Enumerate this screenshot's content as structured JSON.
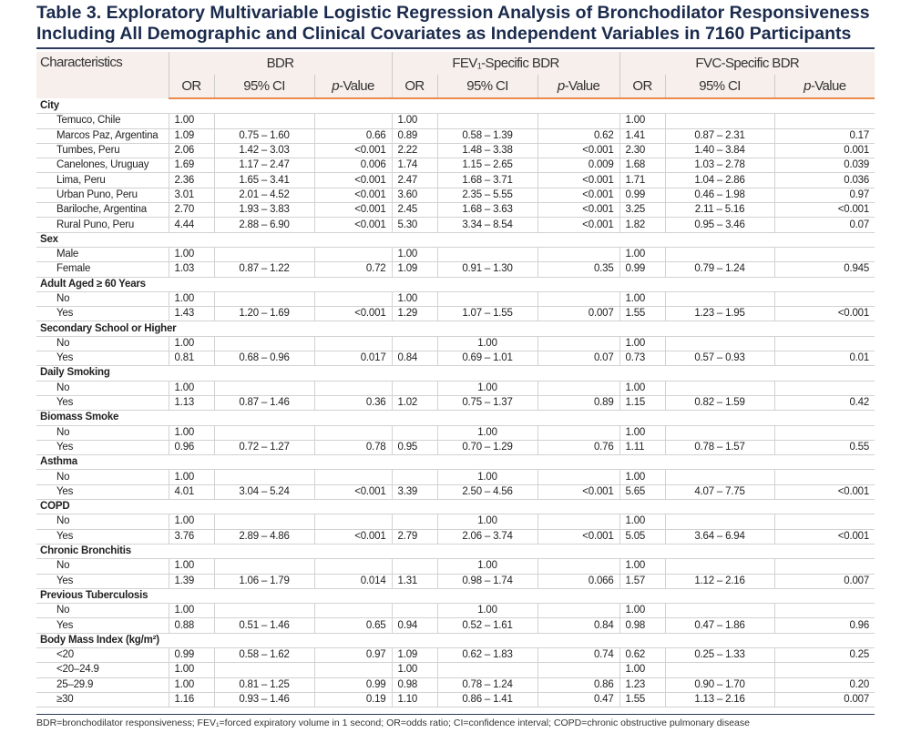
{
  "header": {
    "title": "Table 3. Exploratory Multivariable Logistic Regression Analysis of Bronchodilator Responsiveness Including All Demographic and Clinical Covariates as Independent Variables in 7160 Participants"
  },
  "table": {
    "groups": [
      "Characteristics",
      "BDR",
      "FEV₁-Specific BDR",
      "FVC-Specific BDR"
    ],
    "subheaders": [
      "OR",
      "95% CI",
      "p-Value",
      "OR",
      "95% CI",
      "p-Value",
      "OR",
      "95% CI",
      "p-Value"
    ],
    "sections": [
      {
        "title": "City",
        "rows": [
          [
            "Temuco, Chile",
            "1.00",
            null,
            null,
            "1.00",
            null,
            null,
            "1.00",
            null,
            null
          ],
          [
            "Marcos Paz, Argentina",
            "1.09",
            "0.75 – 1.60",
            "0.66",
            "0.89",
            "0.58 – 1.39",
            "0.62",
            "1.41",
            "0.87 – 2.31",
            "0.17"
          ],
          [
            "Tumbes, Peru",
            "2.06",
            "1.42 – 3.03",
            "<0.001",
            "2.22",
            "1.48 – 3.38",
            "<0.001",
            "2.30",
            "1.40 – 3.84",
            "0.001"
          ],
          [
            "Canelones, Uruguay",
            "1.69",
            "1.17 – 2.47",
            "0.006",
            "1.74",
            "1.15 – 2.65",
            "0.009",
            "1.68",
            "1.03 – 2.78",
            "0.039"
          ],
          [
            "Lima, Peru",
            "2.36",
            "1.65 – 3.41",
            "<0.001",
            "2.47",
            "1.68 – 3.71",
            "<0.001",
            "1.71",
            "1.04 – 2.86",
            "0.036"
          ],
          [
            "Urban Puno, Peru",
            "3.01",
            "2.01 – 4.52",
            "<0.001",
            "3.60",
            "2.35 – 5.55",
            "<0.001",
            "0.99",
            "0.46 – 1.98",
            "0.97"
          ],
          [
            "Bariloche, Argentina",
            "2.70",
            "1.93 – 3.83",
            "<0.001",
            "2.45",
            "1.68 – 3.63",
            "<0.001",
            "3.25",
            "2.11 – 5.16",
            "<0.001"
          ],
          [
            "Rural Puno, Peru",
            "4.44",
            "2.88 – 6.90",
            "<0.001",
            "5.30",
            "3.34 – 8.54",
            "<0.001",
            "1.82",
            "0.95 – 3.46",
            "0.07"
          ]
        ]
      },
      {
        "title": "Sex",
        "rows": [
          [
            "Male",
            "1.00",
            null,
            null,
            "1.00",
            null,
            null,
            "1.00",
            null,
            null
          ],
          [
            "Female",
            "1.03",
            "0.87 – 1.22",
            "0.72",
            "1.09",
            "0.91 – 1.30",
            "0.35",
            "0.99",
            "0.79 – 1.24",
            "0.945"
          ]
        ]
      },
      {
        "title": "Adult Aged ≥ 60 Years",
        "rows": [
          [
            "No",
            "1.00",
            null,
            null,
            "1.00",
            null,
            null,
            "1.00",
            null,
            null
          ],
          [
            "Yes",
            "1.43",
            "1.20 – 1.69",
            "<0.001",
            "1.29",
            "1.07 – 1.55",
            "0.007",
            "1.55",
            "1.23 – 1.95",
            "<0.001"
          ]
        ]
      },
      {
        "title": "Secondary School or Higher",
        "rows": [
          [
            "No",
            "1.00",
            null,
            null,
            null,
            "1.00",
            null,
            "1.00",
            null,
            null
          ],
          [
            "Yes",
            "0.81",
            "0.68 – 0.96",
            "0.017",
            "0.84",
            "0.69 – 1.01",
            "0.07",
            "0.73",
            "0.57 – 0.93",
            "0.01"
          ]
        ]
      },
      {
        "title": "Daily Smoking",
        "rows": [
          [
            "No",
            "1.00",
            null,
            null,
            null,
            "1.00",
            null,
            "1.00",
            null,
            null
          ],
          [
            "Yes",
            "1.13",
            "0.87 – 1.46",
            "0.36",
            "1.02",
            "0.75 – 1.37",
            "0.89",
            "1.15",
            "0.82 – 1.59",
            "0.42"
          ]
        ]
      },
      {
        "title": "Biomass Smoke",
        "rows": [
          [
            "No",
            "1.00",
            null,
            null,
            null,
            "1.00",
            null,
            "1.00",
            null,
            null
          ],
          [
            "Yes",
            "0.96",
            "0.72 – 1.27",
            "0.78",
            "0.95",
            "0.70 – 1.29",
            "0.76",
            "1.11",
            "0.78 – 1.57",
            "0.55"
          ]
        ]
      },
      {
        "title": "Asthma",
        "rows": [
          [
            "No",
            "1.00",
            null,
            null,
            null,
            "1.00",
            null,
            "1.00",
            null,
            null
          ],
          [
            "Yes",
            "4.01",
            "3.04 – 5.24",
            "<0.001",
            "3.39",
            "2.50 – 4.56",
            "<0.001",
            "5.65",
            "4.07 – 7.75",
            "<0.001"
          ]
        ]
      },
      {
        "title": "COPD",
        "rows": [
          [
            "No",
            "1.00",
            null,
            null,
            null,
            "1.00",
            null,
            "1.00",
            null,
            null
          ],
          [
            "Yes",
            "3.76",
            "2.89 – 4.86",
            "<0.001",
            "2.79",
            "2.06 – 3.74",
            "<0.001",
            "5.05",
            "3.64 – 6.94",
            "<0.001"
          ]
        ]
      },
      {
        "title": "Chronic Bronchitis",
        "rows": [
          [
            "No",
            "1.00",
            null,
            null,
            null,
            "1.00",
            null,
            "1.00",
            null,
            null
          ],
          [
            "Yes",
            "1.39",
            "1.06 – 1.79",
            "0.014",
            "1.31",
            "0.98 – 1.74",
            "0.066",
            "1.57",
            "1.12 – 2.16",
            "0.007"
          ]
        ]
      },
      {
        "title": "Previous Tuberculosis",
        "rows": [
          [
            "No",
            "1.00",
            null,
            null,
            null,
            "1.00",
            null,
            "1.00",
            null,
            null
          ],
          [
            "Yes",
            "0.88",
            "0.51 – 1.46",
            "0.65",
            "0.94",
            "0.52 – 1.61",
            "0.84",
            "0.98",
            "0.47 – 1.86",
            "0.96"
          ]
        ]
      },
      {
        "title": "Body Mass Index (kg/m²)",
        "rows": [
          [
            "<20",
            "0.99",
            "0.58 – 1.62",
            "0.97",
            "1.09",
            "0.62 – 1.83",
            "0.74",
            "0.62",
            "0.25 – 1.33",
            "0.25"
          ],
          [
            "<20–24.9",
            "1.00",
            null,
            null,
            "1.00",
            null,
            null,
            "1.00",
            null,
            null
          ],
          [
            "25–29.9",
            "1.00",
            "0.81 – 1.25",
            "0.99",
            "0.98",
            "0.78 – 1.24",
            "0.86",
            "1.23",
            "0.90 – 1.70",
            "0.20"
          ],
          [
            "≥30",
            "1.16",
            "0.93 – 1.46",
            "0.19",
            "1.10",
            "0.86 – 1.41",
            "0.47",
            "1.55",
            "1.13 – 2.16",
            "0.007"
          ]
        ]
      }
    ]
  },
  "footnote": "BDR=bronchodilator responsiveness; FEV₁=forced expiratory volume in 1 second; OR=odds ratio; CI=confidence interval; COPD=chronic obstructive pulmonary disease"
}
